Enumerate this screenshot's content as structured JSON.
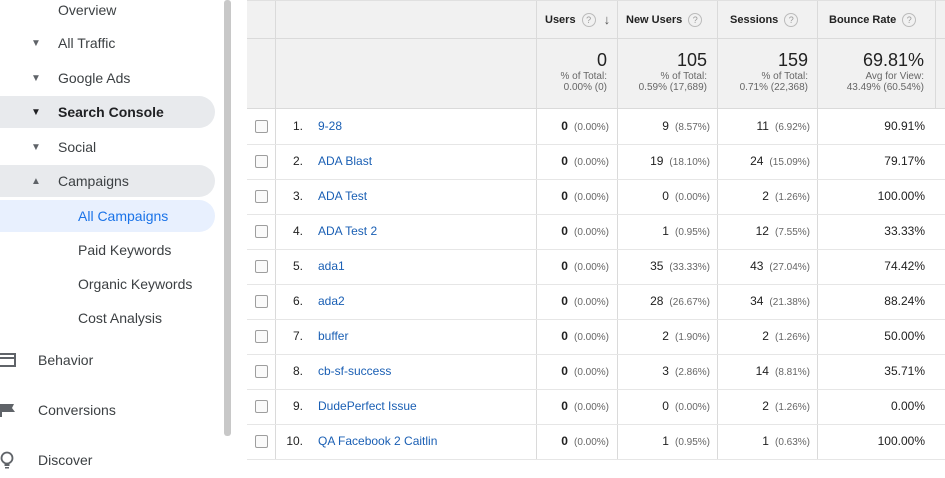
{
  "sidebar": {
    "items": [
      {
        "label": "Overview",
        "caret": "",
        "type": "sub"
      },
      {
        "label": "All Traffic",
        "caret": "▼",
        "type": "sub"
      },
      {
        "label": "Google Ads",
        "caret": "▼",
        "type": "sub"
      },
      {
        "label": "Search Console",
        "caret": "▼",
        "type": "sub"
      },
      {
        "label": "Social",
        "caret": "▼",
        "type": "sub"
      },
      {
        "label": "Campaigns",
        "caret": "▲",
        "type": "sub"
      },
      {
        "label": "All Campaigns",
        "type": "subsub"
      },
      {
        "label": "Paid Keywords",
        "type": "subsub"
      },
      {
        "label": "Organic Keywords",
        "type": "subsub"
      },
      {
        "label": "Cost Analysis",
        "type": "subsub"
      }
    ],
    "sections": [
      {
        "label": "Behavior",
        "icon": "behavior-icon"
      },
      {
        "label": "Conversions",
        "icon": "flag-icon"
      },
      {
        "label": "Discover",
        "icon": "lightbulb-icon"
      }
    ]
  },
  "table": {
    "columns": [
      {
        "label": "Users",
        "help": "?",
        "sort": "↓"
      },
      {
        "label": "New Users",
        "help": "?"
      },
      {
        "label": "Sessions",
        "help": "?"
      },
      {
        "label": "Bounce Rate",
        "help": "?"
      }
    ],
    "totals": [
      {
        "value": "0",
        "sub1": "% of Total:",
        "sub2": "0.00% (0)"
      },
      {
        "value": "105",
        "sub1": "% of Total:",
        "sub2": "0.59% (17,689)"
      },
      {
        "value": "159",
        "sub1": "% of Total:",
        "sub2": "0.71% (22,368)"
      },
      {
        "value": "69.81%",
        "sub1": "Avg for View:",
        "sub2": "43.49% (60.54%)"
      }
    ],
    "rows": [
      {
        "num": "1.",
        "name": "9-28",
        "users": "0",
        "users_pct": "(0.00%)",
        "new": "9",
        "new_pct": "(8.57%)",
        "sessions": "11",
        "sessions_pct": "(6.92%)",
        "bounce": "90.91%"
      },
      {
        "num": "2.",
        "name": "ADA Blast",
        "users": "0",
        "users_pct": "(0.00%)",
        "new": "19",
        "new_pct": "(18.10%)",
        "sessions": "24",
        "sessions_pct": "(15.09%)",
        "bounce": "79.17%"
      },
      {
        "num": "3.",
        "name": "ADA Test",
        "users": "0",
        "users_pct": "(0.00%)",
        "new": "0",
        "new_pct": "(0.00%)",
        "sessions": "2",
        "sessions_pct": "(1.26%)",
        "bounce": "100.00%"
      },
      {
        "num": "4.",
        "name": "ADA Test 2",
        "users": "0",
        "users_pct": "(0.00%)",
        "new": "1",
        "new_pct": "(0.95%)",
        "sessions": "12",
        "sessions_pct": "(7.55%)",
        "bounce": "33.33%"
      },
      {
        "num": "5.",
        "name": "ada1",
        "users": "0",
        "users_pct": "(0.00%)",
        "new": "35",
        "new_pct": "(33.33%)",
        "sessions": "43",
        "sessions_pct": "(27.04%)",
        "bounce": "74.42%"
      },
      {
        "num": "6.",
        "name": "ada2",
        "users": "0",
        "users_pct": "(0.00%)",
        "new": "28",
        "new_pct": "(26.67%)",
        "sessions": "34",
        "sessions_pct": "(21.38%)",
        "bounce": "88.24%"
      },
      {
        "num": "7.",
        "name": "buffer",
        "users": "0",
        "users_pct": "(0.00%)",
        "new": "2",
        "new_pct": "(1.90%)",
        "sessions": "2",
        "sessions_pct": "(1.26%)",
        "bounce": "50.00%"
      },
      {
        "num": "8.",
        "name": "cb-sf-success",
        "users": "0",
        "users_pct": "(0.00%)",
        "new": "3",
        "new_pct": "(2.86%)",
        "sessions": "14",
        "sessions_pct": "(8.81%)",
        "bounce": "35.71%"
      },
      {
        "num": "9.",
        "name": "DudePerfect Issue",
        "users": "0",
        "users_pct": "(0.00%)",
        "new": "0",
        "new_pct": "(0.00%)",
        "sessions": "2",
        "sessions_pct": "(1.26%)",
        "bounce": "0.00%"
      },
      {
        "num": "10.",
        "name": "QA Facebook 2 Caitlin",
        "users": "0",
        "users_pct": "(0.00%)",
        "new": "1",
        "new_pct": "(0.95%)",
        "sessions": "1",
        "sessions_pct": "(0.63%)",
        "bounce": "100.00%"
      }
    ]
  }
}
